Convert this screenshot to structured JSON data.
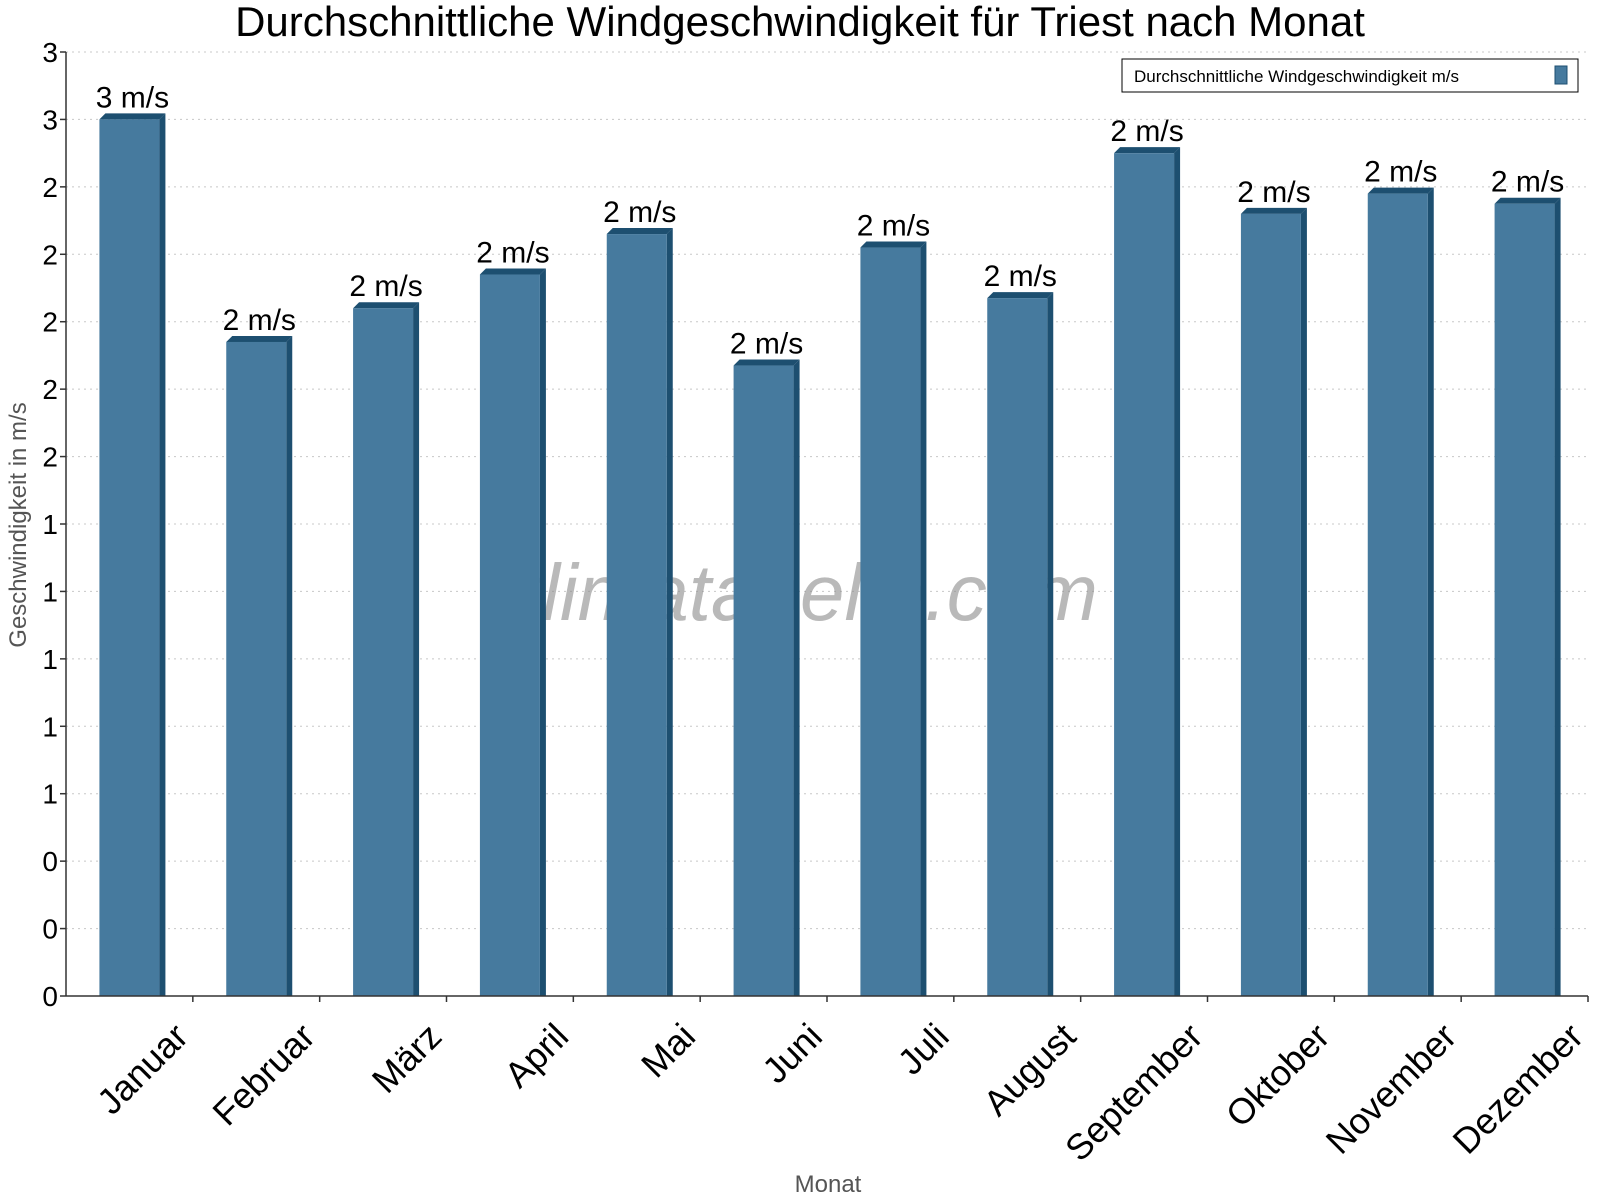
{
  "chart_data": {
    "type": "bar",
    "title": "Durchschnittliche Windgeschwindigkeit für Triest nach Monat",
    "xlabel": "Monat",
    "ylabel": "Geschwindigkeit in m/s",
    "watermark": "klimatabelle.com",
    "categories": [
      "Januar",
      "Februar",
      "März",
      "April",
      "Mai",
      "Juni",
      "Juli",
      "August",
      "September",
      "Oktober",
      "November",
      "Dezember"
    ],
    "series": [
      {
        "name": "Durchschnittliche Windgeschwindigkeit m/s",
        "values": [
          2.6,
          1.94,
          2.04,
          2.14,
          2.26,
          1.87,
          2.22,
          2.07,
          2.5,
          2.32,
          2.38,
          2.35
        ],
        "value_labels": [
          "3 m/s",
          "2 m/s",
          "2 m/s",
          "2 m/s",
          "2 m/s",
          "2 m/s",
          "2 m/s",
          "2 m/s",
          "2 m/s",
          "2 m/s",
          "2 m/s",
          "2 m/s"
        ],
        "color": "#467a9e",
        "edge_color": "#1d4f70"
      }
    ],
    "ylim": [
      0,
      2.8
    ],
    "yticks": [
      0,
      0.2,
      0.4,
      0.6,
      0.8,
      1.0,
      1.2,
      1.4,
      1.6,
      1.8,
      2.0,
      2.2,
      2.4,
      2.6,
      2.8
    ],
    "ytick_labels": [
      "0",
      "0",
      "0",
      "1",
      "1",
      "1",
      "1",
      "1",
      "2",
      "2",
      "2",
      "2",
      "2",
      "3",
      "3"
    ],
    "grid": true,
    "legend_position": "top-right"
  }
}
